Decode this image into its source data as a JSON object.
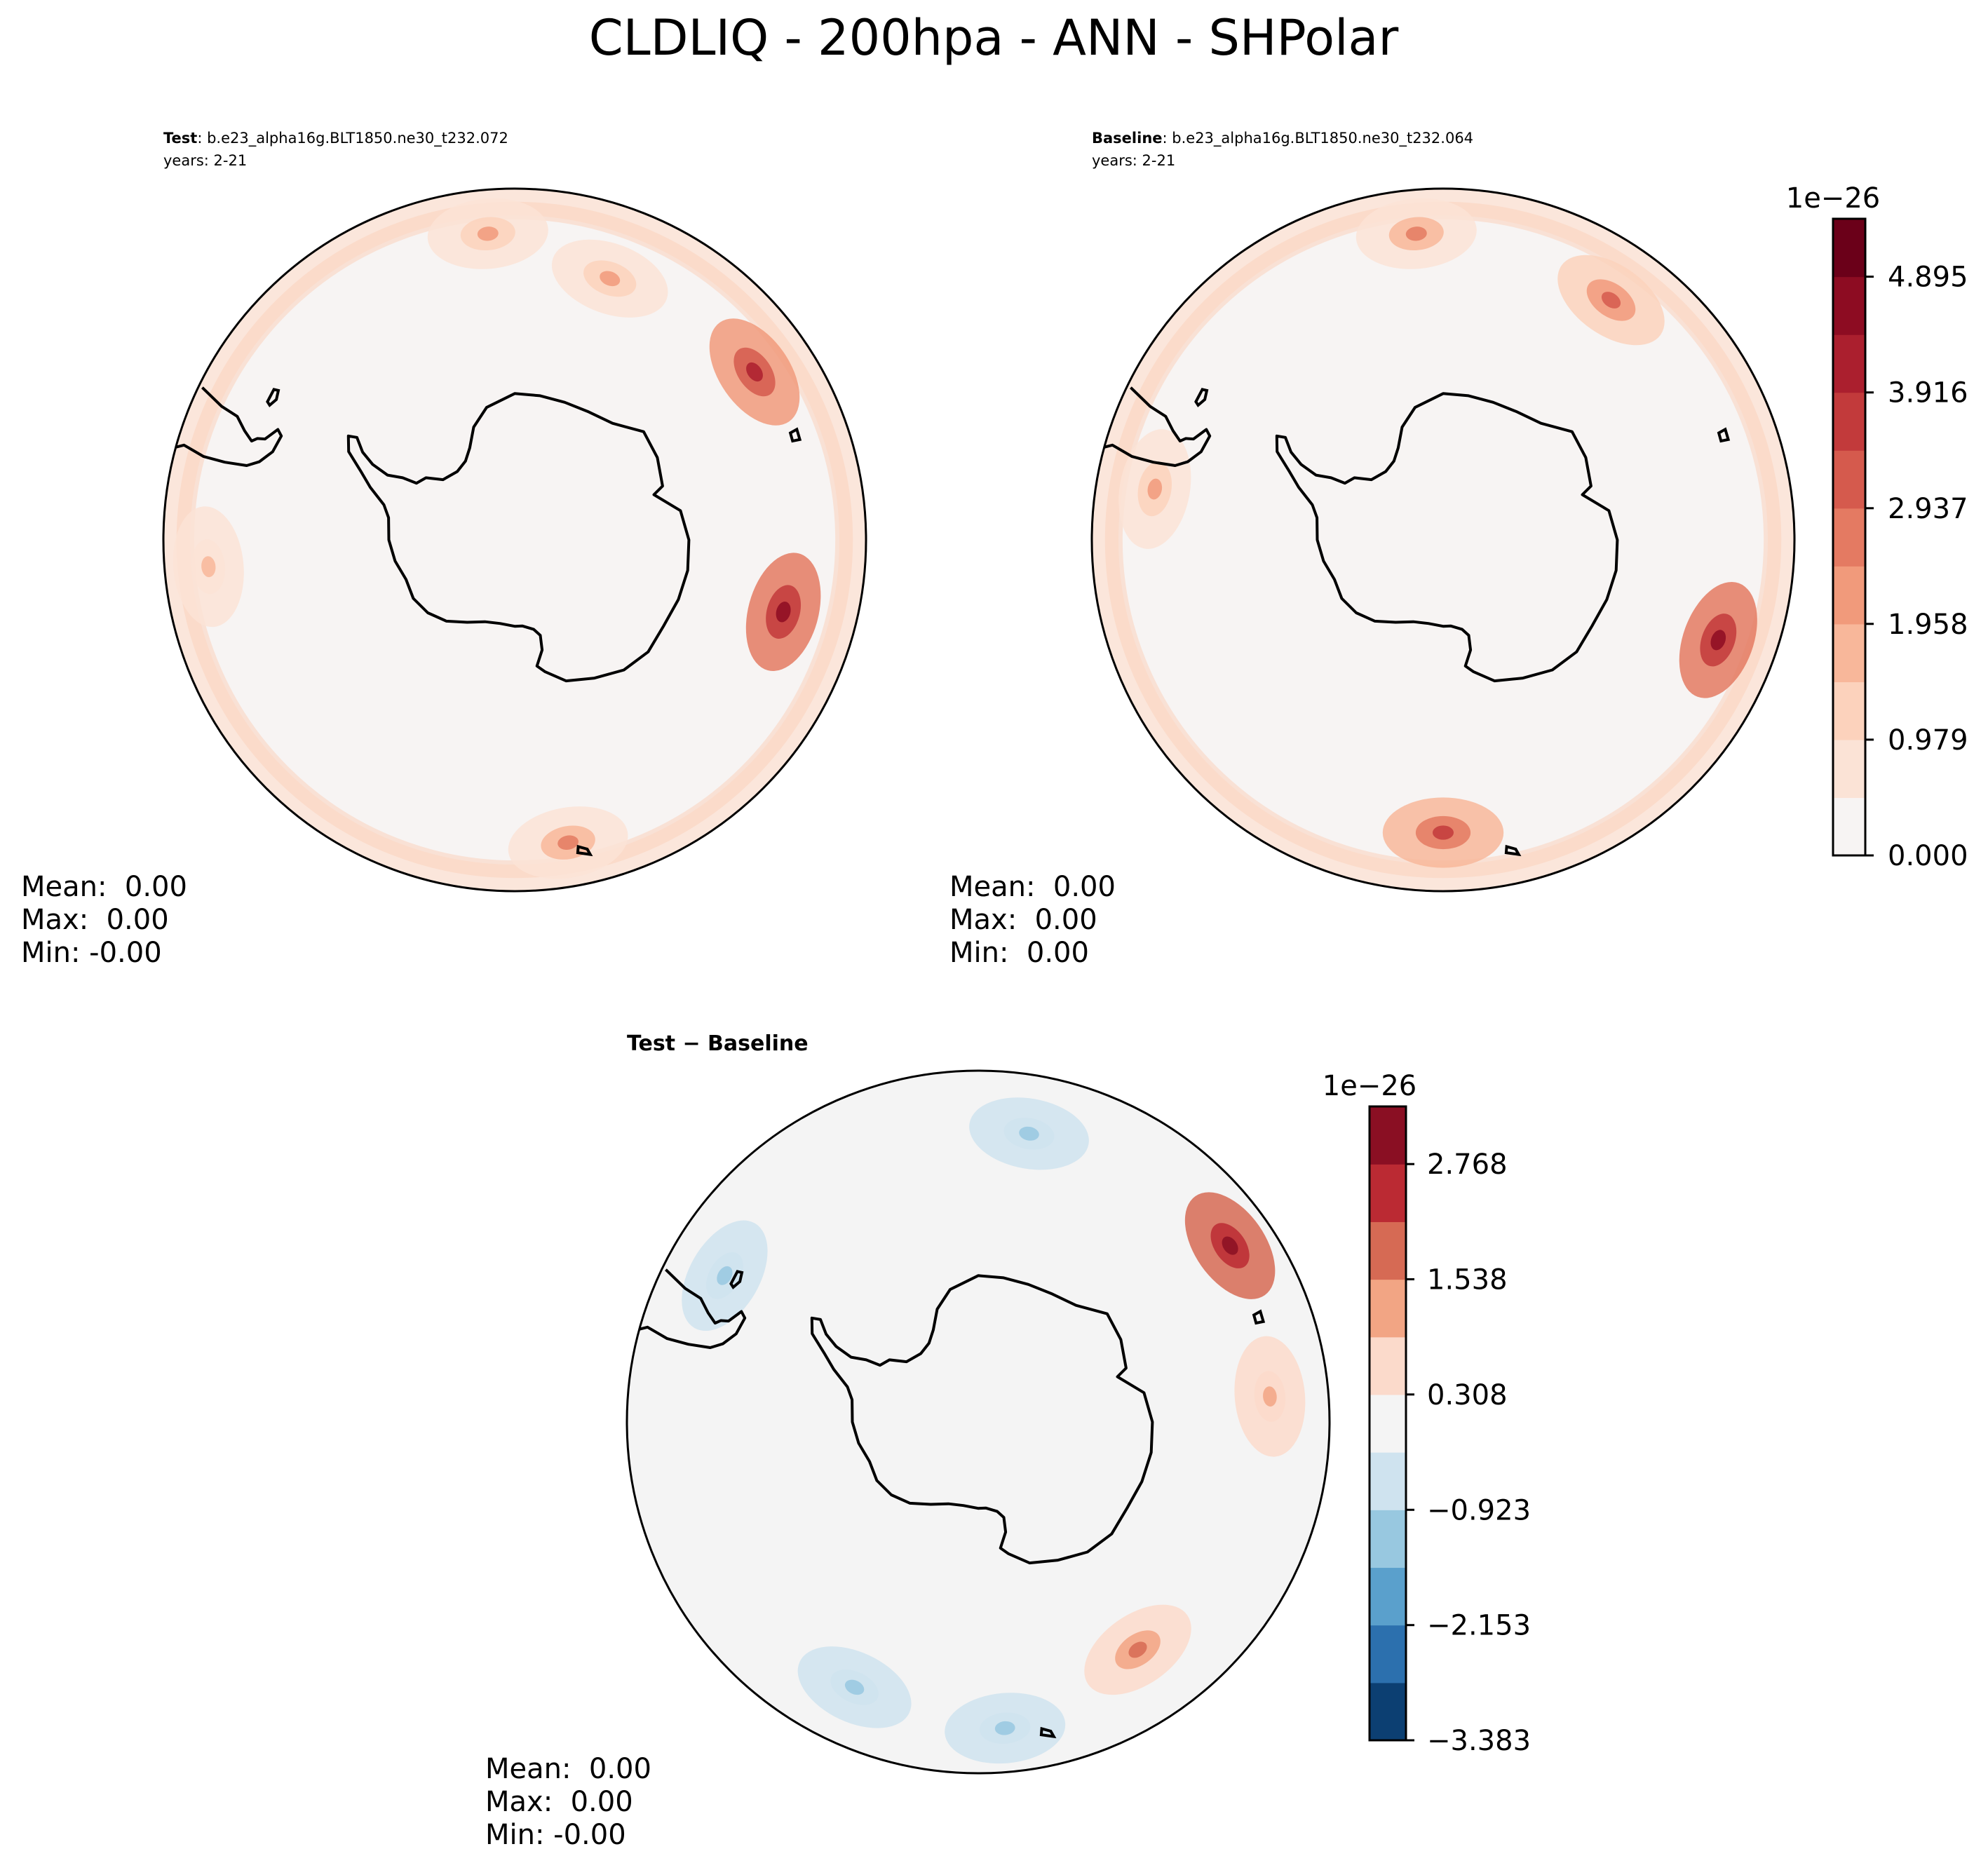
{
  "figure_title": "CLDLIQ - 200hpa - ANN - SHPolar",
  "colors": {
    "land_outline": "#000000",
    "frame": "#000000",
    "reds_cmap": [
      "#f7f4f3",
      "#fbe3d6",
      "#fcd2bc",
      "#f8b79a",
      "#f19a7b",
      "#e47a62",
      "#d55a4d",
      "#c23a3b",
      "#ab1f2e",
      "#8d0c22",
      "#6b0019"
    ],
    "diff_cmap": [
      "#0c3f72",
      "#2c70ae",
      "#5aa0cc",
      "#98c8e0",
      "#cfe3ef",
      "#f4f4f4",
      "#fbdacb",
      "#f2a584",
      "#d66a54",
      "#bb2a33",
      "#8a0f23"
    ]
  },
  "chart_data": [
    {
      "type": "heatmap",
      "subtitle_bold": "Test",
      "subtitle_text": ": b.e23_alpha16g.BLT1850.ne30_t232.072",
      "years": "years: 2-21",
      "projection": "South Polar Stereographic",
      "stats": {
        "mean": "Mean:  0.00",
        "max": "Max:  0.00",
        "min": "Min: -0.00"
      },
      "hotspots": [
        {
          "lon": 105,
          "lat": -52,
          "v": 1.0
        },
        {
          "lon": 55,
          "lat": -50,
          "v": 0.9
        },
        {
          "lon": 170,
          "lat": -48,
          "v": 0.6
        },
        {
          "lon": -5,
          "lat": -48,
          "v": 0.45
        },
        {
          "lon": -95,
          "lat": -48,
          "v": 0.35
        },
        {
          "lon": 20,
          "lat": -52,
          "v": 0.4
        }
      ]
    },
    {
      "type": "heatmap",
      "subtitle_bold": "Baseline",
      "subtitle_text": ": b.e23_alpha16g.BLT1850.ne30_t232.064",
      "years": "years: 2-21",
      "projection": "South Polar Stereographic",
      "stats": {
        "mean": "Mean:  0.00",
        "max": "Max:  0.00",
        "min": "Min:  0.00"
      },
      "colorbar": {
        "exponent_label": "1e−26",
        "min": 0.0,
        "max": 5.385,
        "tick_values": [
          0.0,
          0.979,
          1.958,
          2.937,
          3.916,
          4.895
        ],
        "tick_labels": [
          "0.000",
          "0.979",
          "1.958",
          "2.937",
          "3.916",
          "4.895"
        ]
      },
      "hotspots": [
        {
          "lon": 110,
          "lat": -50,
          "v": 1.0
        },
        {
          "lon": 180,
          "lat": -50,
          "v": 0.75
        },
        {
          "lon": 35,
          "lat": -50,
          "v": 0.7
        },
        {
          "lon": -5,
          "lat": -48,
          "v": 0.55
        },
        {
          "lon": -80,
          "lat": -50,
          "v": 0.45
        }
      ]
    },
    {
      "type": "heatmap",
      "subtitle_bold": "Test",
      "subtitle_text": " − Baseline",
      "projection": "South Polar Stereographic",
      "stats": {
        "mean": "Mean:  0.00",
        "max": "Max:  0.00",
        "min": "Min: -0.00"
      },
      "colorbar": {
        "exponent_label": "1e−26",
        "min": -3.383,
        "max": 3.383,
        "tick_values": [
          -3.383,
          -2.153,
          -0.923,
          0.308,
          1.538,
          2.768
        ],
        "tick_labels": [
          "−3.383",
          "−2.153",
          "−0.923",
          "0.308",
          "1.538",
          "2.768"
        ]
      },
      "hotspots": [
        {
          "lon": 55,
          "lat": -48,
          "v": 1.0
        },
        {
          "lon": 145,
          "lat": -52,
          "v": 0.5
        },
        {
          "lon": 85,
          "lat": -50,
          "v": 0.35
        },
        {
          "lon": -155,
          "lat": -50,
          "v": -0.45
        },
        {
          "lon": -60,
          "lat": -50,
          "v": -0.35
        },
        {
          "lon": 175,
          "lat": -48,
          "v": -0.3
        },
        {
          "lon": 10,
          "lat": -50,
          "v": -0.4
        }
      ]
    }
  ]
}
